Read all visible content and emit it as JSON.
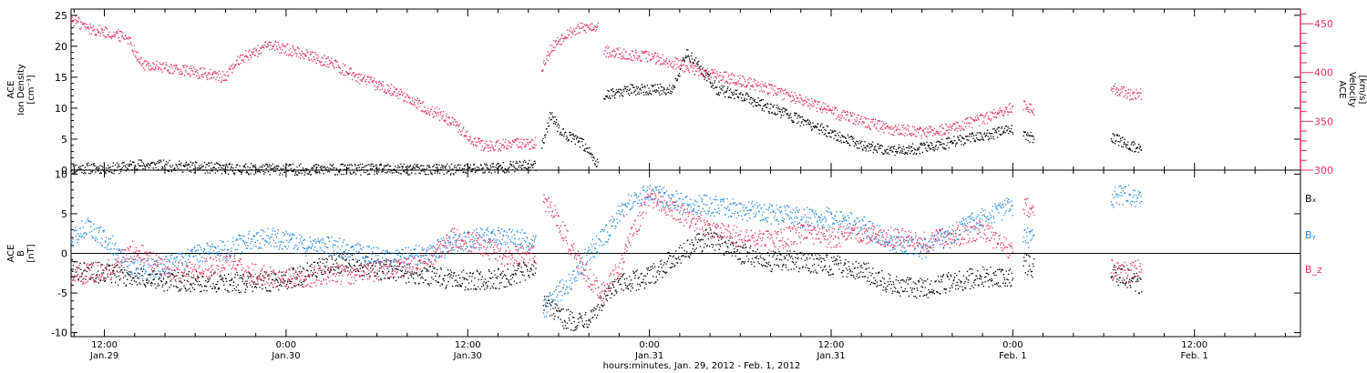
{
  "colors": {
    "black": "#000000",
    "red": "#e8315f",
    "blue": "#1e88e5",
    "frame": "#000000"
  },
  "x_axis": {
    "label": "hours:minutes, Jan. 29, 2012 - Feb. 1, 2012",
    "ticks": [
      {
        "hour": 12,
        "line1": "12:00",
        "line2": "Jan.29"
      },
      {
        "hour": 24,
        "line1": "0:00",
        "line2": "Jan.30"
      },
      {
        "hour": 36,
        "line1": "12:00",
        "line2": "Jan.30"
      },
      {
        "hour": 48,
        "line1": "0:00",
        "line2": "Jan.31"
      },
      {
        "hour": 60,
        "line1": "12:00",
        "line2": "Jan.31"
      },
      {
        "hour": 72,
        "line1": "0:00",
        "line2": "Feb. 1"
      },
      {
        "hour": 84,
        "line1": "12:00",
        "line2": "Feb. 1"
      }
    ],
    "range_hours": [
      9.8,
      91.0
    ]
  },
  "chart_data": [
    {
      "type": "scatter",
      "panel": "top",
      "left_axis": {
        "ylabel_lines": [
          "ACE",
          "Ion Density",
          "[cm⁻³]"
        ],
        "ylim": [
          0,
          26
        ],
        "ticks": [
          0,
          5,
          10,
          15,
          20,
          25
        ]
      },
      "right_axis": {
        "ylabel_lines": [
          "ACE",
          "Velocity",
          "[km/s]"
        ],
        "ylim": [
          300,
          465
        ],
        "ticks": [
          300,
          350,
          400,
          450
        ],
        "color": "#e8315f"
      },
      "series": [
        {
          "axis": "left",
          "color": "#000000",
          "segments": [
            {
              "x": [
                9.8,
                13.0,
                14.0,
                16.0,
                20.0,
                25.0,
                30.0,
                35.0,
                38.0,
                40.5
              ],
              "y": [
                0.3,
                0.3,
                0.9,
                0.7,
                0.2,
                0.1,
                0.1,
                0.1,
                0.4,
                0.8
              ]
            },
            {
              "x": [
                40.9,
                41.5,
                42.2,
                43.0,
                43.7,
                44.6
              ],
              "y": [
                4.0,
                9.0,
                6.0,
                5.0,
                4.0,
                1.0
              ]
            },
            {
              "x": [
                45.0,
                46.5,
                48.0,
                49.5,
                50.5,
                51.5,
                52.5,
                54.0,
                56.0,
                58.0,
                60.0,
                62.0,
                64.0,
                66.0,
                68.0,
                70.0,
                72.0
              ],
              "y": [
                12.0,
                13.0,
                13.0,
                13.0,
                19.0,
                16.0,
                13.0,
                12.0,
                10.0,
                8.0,
                6.0,
                4.0,
                3.2,
                3.5,
                4.5,
                5.5,
                6.5
              ]
            },
            {
              "x": [
                72.7,
                73.4
              ],
              "y": [
                6.0,
                5.0
              ]
            },
            {
              "x": [
                78.5,
                79.5,
                80.5
              ],
              "y": [
                5.5,
                4.0,
                3.5
              ]
            }
          ]
        },
        {
          "axis": "right",
          "color": "#e8315f",
          "segments": [
            {
              "x": [
                9.8,
                11.0,
                13.0,
                13.5,
                14.5,
                16.0,
                18.0,
                20.0,
                21.0,
                23.0,
                25.0,
                27.0,
                29.0,
                31.0,
                33.0,
                35.0,
                36.0,
                37.0,
                38.0,
                40.5
              ],
              "y": [
                455,
                445,
                438,
                437,
                408,
                405,
                400,
                395,
                415,
                428,
                420,
                410,
                393,
                382,
                366,
                350,
                335,
                325,
                325,
                328
              ]
            },
            {
              "x": [
                40.9,
                41.5,
                42.5,
                43.5,
                44.6
              ],
              "y": [
                405,
                425,
                440,
                445,
                448
              ]
            },
            {
              "x": [
                45.0,
                46.0,
                48.0,
                50.0,
                52.0,
                54.0,
                56.0,
                58.0,
                60.0,
                62.0,
                64.0,
                66.0,
                68.0,
                70.0,
                72.0
              ],
              "y": [
                422,
                420,
                416,
                408,
                398,
                392,
                382,
                372,
                360,
                350,
                342,
                338,
                343,
                352,
                364
              ]
            },
            {
              "x": [
                72.7,
                73.4
              ],
              "y": [
                365,
                362
              ]
            },
            {
              "x": [
                78.5,
                79.5,
                80.5
              ],
              "y": [
                385,
                378,
                378
              ]
            }
          ]
        }
      ]
    },
    {
      "type": "scatter",
      "panel": "bottom",
      "left_axis": {
        "ylabel_lines": [
          "ACE",
          "B",
          "[nT]"
        ],
        "ylim": [
          -10.5,
          10.5
        ],
        "ticks": [
          -10,
          -5,
          0,
          5,
          10
        ]
      },
      "zero_line": true,
      "legend": {
        "placement": "right",
        "entries": [
          {
            "label": "Bₓ",
            "color": "#000000"
          },
          {
            "label": "Bᵧ",
            "color": "#1e88e5"
          },
          {
            "label": "B_z",
            "color": "#e8315f"
          }
        ]
      },
      "series": [
        {
          "name": "Bₓ",
          "color": "#000000",
          "segments": [
            {
              "x": [
                9.8,
                12.0,
                14.0,
                16.0,
                18.0,
                20.0,
                22.0,
                24.0,
                26.0,
                28.0,
                30.0,
                32.0,
                34.0,
                36.0,
                38.0,
                40.5
              ],
              "y": [
                -2.0,
                -2.5,
                -3.0,
                -3.5,
                -3.6,
                -3.7,
                -3.6,
                -3.4,
                -2.0,
                -1.0,
                -2.0,
                -2.5,
                -3.0,
                -3.5,
                -3.2,
                -2.0
              ]
            },
            {
              "x": [
                41.0,
                42.0,
                43.0,
                44.0,
                45.0,
                46.0,
                48.0,
                50.0,
                52.0,
                54.0,
                56.0,
                58.0,
                60.0,
                62.0,
                64.0,
                66.0,
                68.0,
                70.0,
                72.0
              ],
              "y": [
                -6.0,
                -8.0,
                -8.5,
                -8.0,
                -6.0,
                -4.0,
                -3.0,
                0.0,
                2.0,
                0.0,
                -1.0,
                -1.0,
                -1.5,
                -2.0,
                -4.0,
                -4.5,
                -3.5,
                -3.0,
                -3.0
              ]
            },
            {
              "x": [
                72.7,
                73.4
              ],
              "y": [
                -1.0,
                -2.0
              ]
            },
            {
              "x": [
                78.5,
                79.5,
                80.5
              ],
              "y": [
                -2.5,
                -3.0,
                -4.0
              ]
            }
          ]
        },
        {
          "name": "Bᵧ",
          "color": "#1e88e5",
          "segments": [
            {
              "x": [
                9.8,
                11.0,
                12.5,
                14.0,
                15.5,
                17.0,
                18.5,
                20.0,
                21.5,
                23.0,
                25.0,
                27.0,
                29.0,
                31.0,
                33.0,
                35.0,
                37.0,
                38.5,
                40.5
              ],
              "y": [
                2.0,
                3.5,
                1.0,
                -2.0,
                -2.0,
                -1.0,
                0.0,
                0.5,
                1.5,
                2.0,
                1.0,
                1.0,
                0.0,
                -1.0,
                0.0,
                1.0,
                2.0,
                2.0,
                1.5
              ]
            },
            {
              "x": [
                41.0,
                42.0,
                43.0,
                44.0,
                45.0,
                46.0,
                47.0,
                48.0,
                50.0,
                52.0,
                54.0,
                56.0,
                58.0,
                60.0,
                62.0,
                64.0,
                66.0,
                68.0,
                70.0,
                72.0
              ],
              "y": [
                -7.0,
                -5.0,
                -3.0,
                0.0,
                2.0,
                5.0,
                7.0,
                7.5,
                6.5,
                6.0,
                5.5,
                5.0,
                4.5,
                4.5,
                3.5,
                1.5,
                0.5,
                2.5,
                4.5,
                6.0
              ]
            },
            {
              "x": [
                72.7,
                73.4
              ],
              "y": [
                2.0,
                2.0
              ]
            },
            {
              "x": [
                78.5,
                79.5,
                80.5
              ],
              "y": [
                7.0,
                7.5,
                7.0
              ]
            }
          ]
        },
        {
          "name": "B_z",
          "color": "#e8315f",
          "segments": [
            {
              "x": [
                9.8,
                11.0,
                12.5,
                14.0,
                15.5,
                17.0,
                18.5,
                20.0,
                21.5,
                23.0,
                25.0,
                27.0,
                29.0,
                31.0,
                33.0,
                35.0,
                37.0,
                38.5,
                40.5
              ],
              "y": [
                -3.0,
                -2.5,
                -2.0,
                0.5,
                -1.5,
                -2.5,
                -2.0,
                -1.0,
                -2.5,
                -3.0,
                -3.0,
                -2.8,
                -2.5,
                -2.0,
                -1.5,
                2.0,
                1.0,
                -0.5,
                0.0
              ]
            },
            {
              "x": [
                41.0,
                42.0,
                43.0,
                44.0,
                45.0,
                46.0,
                47.0,
                48.0,
                50.0,
                52.0,
                54.0,
                56.0,
                58.0,
                60.0,
                62.0,
                64.0,
                66.0,
                68.0,
                70.0,
                72.0
              ],
              "y": [
                7.0,
                4.0,
                0.0,
                -3.0,
                -5.0,
                -2.0,
                3.0,
                7.0,
                5.0,
                3.0,
                2.0,
                1.5,
                2.5,
                2.0,
                2.5,
                2.0,
                1.5,
                2.0,
                3.0,
                0.0
              ]
            },
            {
              "x": [
                72.7,
                73.4
              ],
              "y": [
                6.0,
                5.5
              ]
            },
            {
              "x": [
                78.5,
                79.5,
                80.5
              ],
              "y": [
                -2.0,
                -2.5,
                -2.0
              ]
            }
          ]
        }
      ]
    }
  ]
}
